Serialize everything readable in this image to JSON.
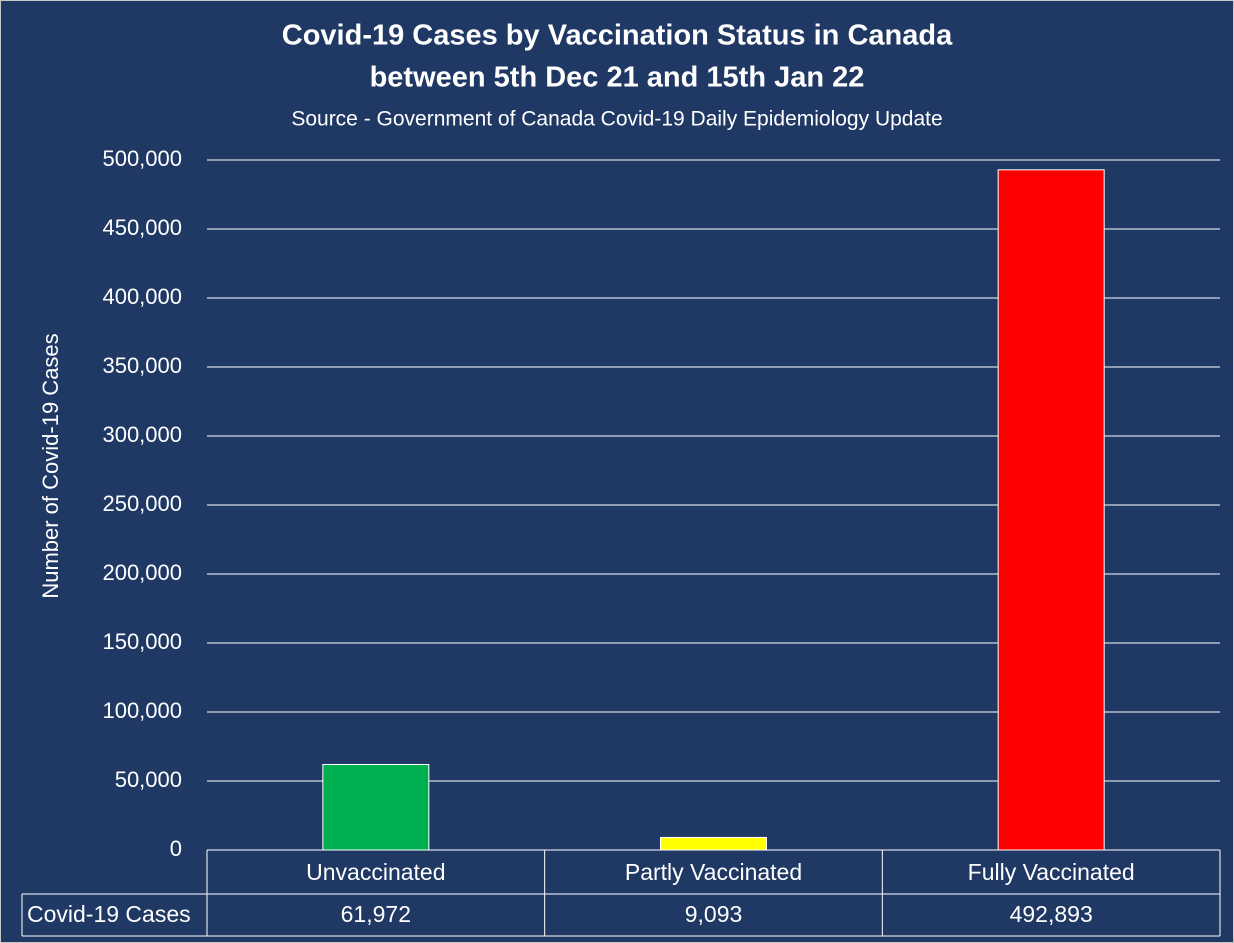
{
  "chart_data": {
    "type": "bar",
    "title": [
      "Covid-19 Cases by Vaccination Status in Canada",
      "between 5th Dec 21 and 15th Jan 22"
    ],
    "subtitle": "Source - Government of Canada Covid-19 Daily Epidemiology Update",
    "y_label": "Number of Covid-19 Cases",
    "categories": [
      "Unvaccinated",
      "Partly Vaccinated",
      "Fully Vaccinated"
    ],
    "series": [
      {
        "name": "Covid-19 Cases",
        "colors": [
          "#00b050",
          "#ffff00",
          "#ff0000"
        ],
        "values": [
          61972,
          9093,
          492893
        ],
        "value_labels": [
          "61,972",
          "9,093",
          "492,893"
        ]
      }
    ],
    "ylim": [
      0,
      500000
    ],
    "yticks": [
      0,
      {
        "value": 50000,
        "label": "50,000"
      },
      {
        "value": 100000,
        "label": "100,000"
      },
      {
        "value": 150000,
        "label": "150,000"
      },
      {
        "value": 200000,
        "label": "200,000"
      },
      {
        "value": 250000,
        "label": "250,000"
      },
      {
        "value": 300000,
        "label": "300,000"
      },
      {
        "value": 350000,
        "label": "350,000"
      },
      {
        "value": 400000,
        "label": "400,000"
      },
      {
        "value": 450000,
        "label": "450,000"
      },
      {
        "value": 500000,
        "label": "500,000"
      }
    ],
    "grid": true,
    "data_table": true
  }
}
